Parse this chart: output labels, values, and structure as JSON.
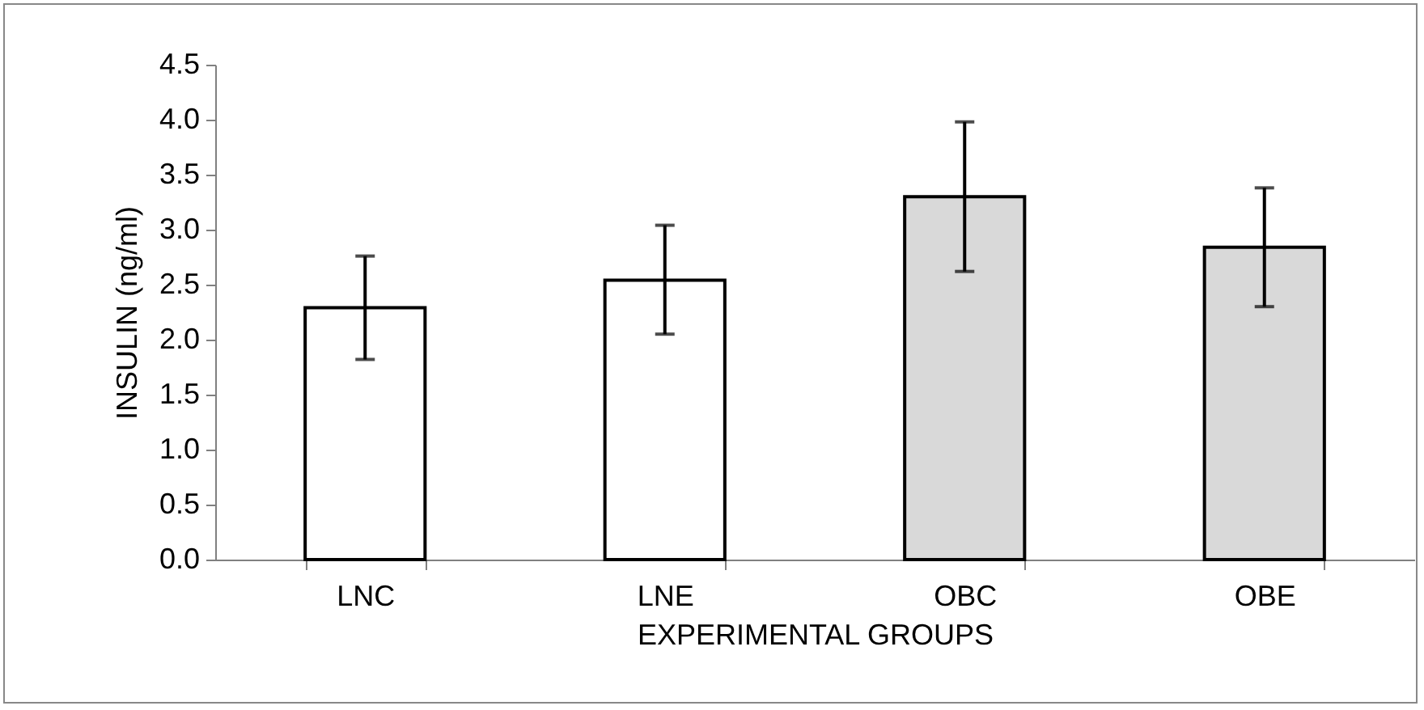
{
  "chart_data": {
    "type": "bar",
    "xlabel": "EXPERIMENTAL GROUPS",
    "ylabel": "INSULIN (ng/ml)",
    "categories": [
      "LNC",
      "LNE",
      "OBC",
      "OBE"
    ],
    "values": [
      2.29,
      2.54,
      3.3,
      2.84
    ],
    "colors": [
      "#ffffff",
      "#ffffff",
      "#d9d9d9",
      "#d9d9d9"
    ],
    "errors": [
      [
        1.82,
        2.76
      ],
      [
        2.05,
        3.04
      ],
      [
        2.62,
        3.98
      ],
      [
        2.3,
        3.38
      ]
    ],
    "ylim": [
      0,
      4.5
    ],
    "yticks": [
      {
        "value": 0,
        "label": "0.0"
      },
      {
        "value": 0.5,
        "label": "0.5"
      },
      {
        "value": 1,
        "label": "1.0"
      },
      {
        "value": 1.5,
        "label": "1.5"
      },
      {
        "value": 2,
        "label": "2.0"
      },
      {
        "value": 2.5,
        "label": "2.5"
      },
      {
        "value": 3,
        "label": "3.0"
      },
      {
        "value": 3.5,
        "label": "3.5"
      },
      {
        "value": 4,
        "label": "4.0"
      },
      {
        "value": 4.5,
        "label": "4.5"
      }
    ],
    "grid": false
  }
}
